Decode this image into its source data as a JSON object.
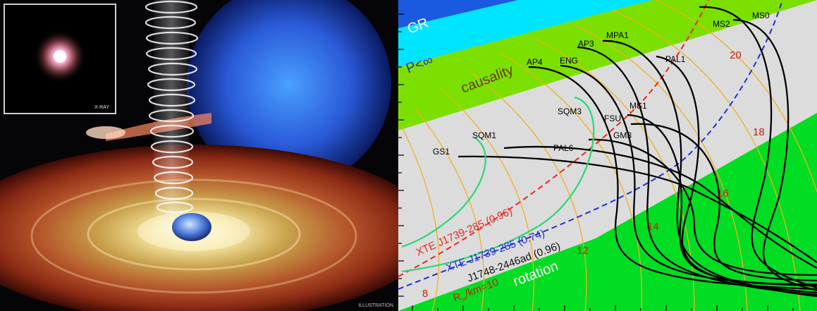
{
  "illustration": {
    "inset_label": "X-RAY",
    "corner_label": "ILLUSTRATION"
  },
  "plot": {
    "regions": {
      "gr": "GR",
      "p_inf": "P<∞",
      "causality": "causality",
      "rotation": "rotation"
    },
    "radius_prefix": "R",
    "radius_sub": "∞",
    "radius_suffix": "/km=10",
    "radius_labels": [
      "8",
      "12",
      "14",
      "16",
      "18",
      "20"
    ],
    "constraints": [
      {
        "text": "XTE J1739-285 (0.96)",
        "color": "#e8281e"
      },
      {
        "text": "XTE J1739-285 (0.74)",
        "color": "#2030d8"
      },
      {
        "text": "J1748-2446ad (0.96)",
        "color": "#111111"
      }
    ],
    "eos_labels": [
      "MS0",
      "MS2",
      "MPA1",
      "AP3",
      "PAL1",
      "AP4",
      "ENG",
      "SQM3",
      "MS1",
      "FSU",
      "GM3",
      "SQM1",
      "PAL6",
      "GS1"
    ],
    "colors": {
      "gr": "#1a5ae0",
      "p_inf": "#00e5ff",
      "causality": "#7be000",
      "allowed": "#dcdcdc",
      "rotation": "#00dd22",
      "radius_curves": "#f0b020",
      "eos_normal": "#000000",
      "eos_strange": "#30d878"
    }
  }
}
